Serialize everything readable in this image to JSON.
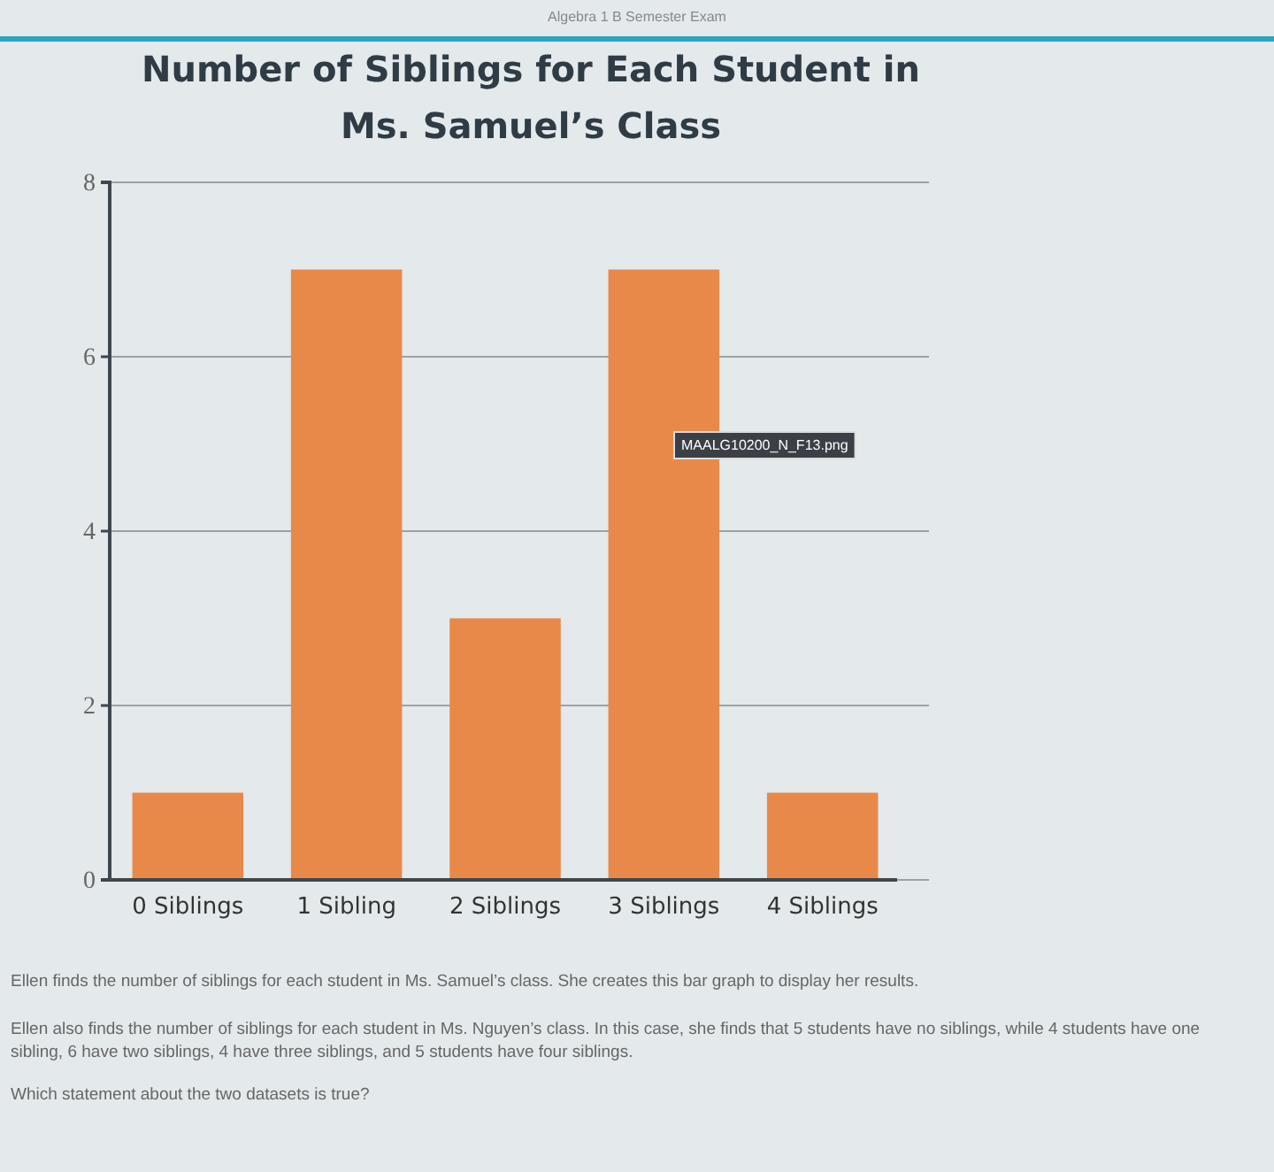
{
  "chart_data": {
    "type": "bar",
    "title": "Number of Siblings for Each Student in Ms. Samuel’s Class",
    "categories": [
      "0 Siblings",
      "1 Sibling",
      "2 Siblings",
      "3 Siblings",
      "4 Siblings"
    ],
    "values": [
      1,
      7,
      3,
      7,
      1
    ],
    "color": "#e8894a",
    "ylim": [
      0,
      8
    ],
    "yticks": [
      0,
      2,
      4,
      6,
      8
    ],
    "grid": "y",
    "annotations": [
      "Algebra 1 B Semester Exam",
      "MAALG10200_N_F13.png",
      "Ellen finds the number of siblings for each student in Ms. Samuel’s class. She creates this bar graph to display her results.",
      "Ellen also finds the number of siblings for each student in Ms. Nguyen’s class. In this case, she finds that 5 students have no siblings, while 4 students have one sibling, 6 have two siblings, 4 have three siblings, and 5 students have four siblings.",
      "Which statement about the two datasets is true?"
    ]
  }
}
